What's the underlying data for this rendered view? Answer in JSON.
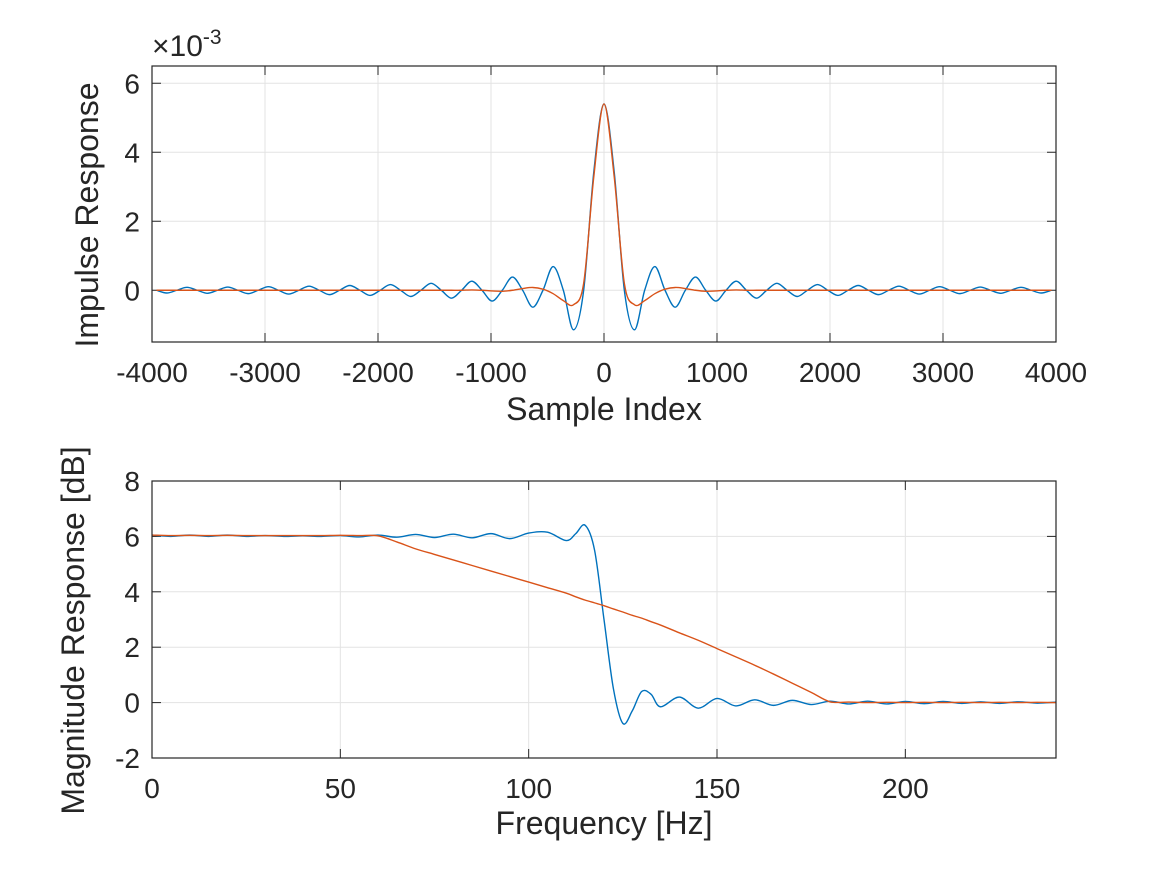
{
  "chart_data": [
    {
      "type": "line",
      "y_multiplier": "×10",
      "y_exponent": "-3",
      "xlabel": "Sample Index",
      "ylabel": "Impulse Response",
      "x": [
        -3960,
        -3870,
        -3780,
        -3690,
        -3600,
        -3510,
        -3420,
        -3330,
        -3240,
        -3150,
        -3060,
        -2970,
        -2880,
        -2790,
        -2700,
        -2610,
        -2520,
        -2430,
        -2340,
        -2250,
        -2160,
        -2070,
        -1980,
        -1890,
        -1800,
        -1710,
        -1620,
        -1530,
        -1440,
        -1350,
        -1260,
        -1170,
        -1080,
        -990,
        -900,
        -810,
        -720,
        -630,
        -540,
        -450,
        -360,
        -270,
        -180,
        -90,
        0,
        90,
        180,
        270,
        360,
        450,
        540,
        630,
        720,
        810,
        900,
        990,
        1080,
        1170,
        1260,
        1350,
        1440,
        1530,
        1620,
        1710,
        1800,
        1890,
        1980,
        2070,
        2160,
        2250,
        2340,
        2430,
        2520,
        2610,
        2700,
        2790,
        2880,
        2970,
        3060,
        3150,
        3240,
        3330,
        3420,
        3510,
        3600,
        3690,
        3780,
        3870,
        3960
      ],
      "series": [
        {
          "color": "#0072BD",
          "values": [
            0,
            -0.08,
            0,
            0.084,
            0,
            -0.088,
            0,
            0.093,
            0,
            -0.098,
            0,
            0.104,
            0,
            -0.111,
            0,
            0.119,
            0,
            -0.127,
            0,
            0.138,
            0,
            -0.149,
            0,
            0.164,
            0,
            -0.181,
            0,
            0.202,
            0,
            -0.229,
            0,
            0.264,
            0,
            -0.313,
            0,
            0.382,
            0,
            -0.491,
            0,
            0.688,
            0,
            -1.146,
            0,
            3.44,
            5.4,
            3.44,
            0,
            -1.146,
            0,
            0.688,
            0,
            -0.491,
            0,
            0.382,
            0,
            -0.313,
            0,
            0.264,
            0,
            -0.229,
            0,
            0.202,
            0,
            -0.181,
            0,
            0.164,
            0,
            -0.149,
            0,
            0.138,
            0,
            -0.127,
            0,
            0.119,
            0,
            -0.111,
            0,
            0.104,
            0,
            -0.098,
            0,
            0.093,
            0,
            -0.088,
            0,
            0.084,
            0,
            -0.08,
            0
          ]
        },
        {
          "color": "#D95319",
          "values": [
            0,
            0,
            0,
            0,
            0,
            0,
            0,
            0,
            0,
            0,
            0,
            0,
            0,
            0,
            0,
            0,
            0,
            0,
            0,
            0,
            0,
            0,
            0,
            0,
            0,
            0,
            0,
            0,
            0,
            0,
            0,
            0.01,
            0,
            -0.02,
            -0.03,
            0,
            0.05,
            0.08,
            0.03,
            -0.1,
            -0.3,
            -0.42,
            0.2,
            3.3,
            5.4,
            3.3,
            0.2,
            -0.42,
            -0.3,
            -0.1,
            0.03,
            0.08,
            0.05,
            0,
            -0.03,
            -0.02,
            0,
            0.01,
            0,
            0,
            0,
            0,
            0,
            0,
            0,
            0,
            0,
            0,
            0,
            0,
            0,
            0,
            0,
            0,
            0,
            0,
            0,
            0,
            0,
            0,
            0,
            0,
            0,
            0,
            0,
            0,
            0,
            0,
            0
          ]
        }
      ],
      "xlim": [
        -4000,
        4000
      ],
      "ylim": [
        -1.5,
        6.5
      ],
      "xticks": [
        -4000,
        -3000,
        -2000,
        -1000,
        0,
        1000,
        2000,
        3000,
        4000
      ],
      "yticks": [
        0,
        2,
        4,
        6
      ],
      "grid": true
    },
    {
      "type": "line",
      "xlabel": "Frequency [Hz]",
      "ylabel": "Magnitude Response [dB]",
      "x": [
        0,
        5,
        10,
        15,
        20,
        25,
        30,
        35,
        40,
        45,
        50,
        55,
        60,
        65,
        70,
        75,
        80,
        85,
        90,
        95,
        100,
        105,
        110,
        112.5,
        115,
        117.5,
        120,
        122.5,
        125,
        127.5,
        130,
        132.5,
        135,
        140,
        145,
        150,
        155,
        160,
        165,
        170,
        175,
        180,
        185,
        190,
        195,
        200,
        205,
        210,
        215,
        220,
        225,
        230,
        235,
        240
      ],
      "series": [
        {
          "color": "#0072BD",
          "values": [
            6.05,
            6.0,
            6.05,
            6.0,
            6.05,
            6.0,
            6.03,
            6.0,
            6.02,
            6.0,
            6.03,
            5.98,
            6.05,
            5.97,
            6.07,
            5.96,
            6.08,
            5.95,
            6.1,
            5.92,
            6.12,
            6.15,
            5.85,
            6.1,
            6.4,
            5.5,
            3.0,
            0.5,
            -0.75,
            -0.3,
            0.4,
            0.3,
            -0.15,
            0.2,
            -0.2,
            0.15,
            -0.12,
            0.1,
            -0.1,
            0.08,
            -0.07,
            0.05,
            -0.05,
            0.05,
            -0.05,
            0.04,
            -0.04,
            0.04,
            -0.03,
            0.03,
            -0.03,
            0.03,
            -0.02,
            0.02
          ]
        },
        {
          "color": "#D95319",
          "values": [
            6.05,
            6.03,
            6.04,
            6.03,
            6.04,
            6.03,
            6.03,
            6.03,
            6.03,
            6.03,
            6.04,
            6.03,
            6.02,
            5.8,
            5.55,
            5.35,
            5.15,
            4.95,
            4.75,
            4.55,
            4.35,
            4.15,
            3.95,
            3.82,
            3.7,
            3.6,
            3.5,
            3.38,
            3.27,
            3.15,
            3.05,
            2.92,
            2.8,
            2.52,
            2.25,
            1.95,
            1.65,
            1.35,
            1.03,
            0.7,
            0.37,
            0.03,
            0.02,
            0.0,
            0.01,
            0,
            0.01,
            0,
            0.01,
            0,
            0.01,
            0,
            0.01,
            0
          ]
        }
      ],
      "xlim": [
        0,
        240
      ],
      "ylim": [
        -2,
        8
      ],
      "xticks": [
        0,
        50,
        100,
        150,
        200
      ],
      "yticks": [
        -2,
        0,
        2,
        4,
        6,
        8
      ],
      "grid": true
    }
  ]
}
